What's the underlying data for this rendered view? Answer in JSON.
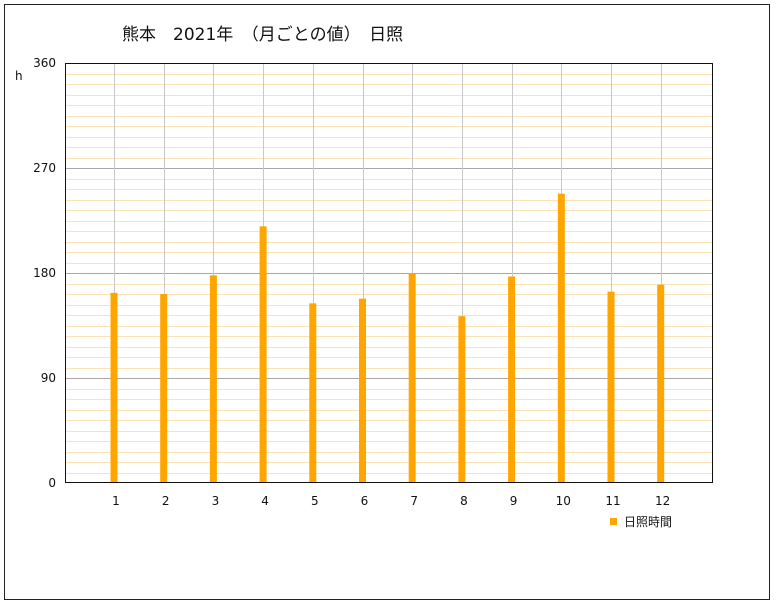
{
  "chart_data": {
    "type": "bar",
    "title": "熊本　2021年　（月ごとの値）　日照",
    "ylabel": "h",
    "xlabel": "",
    "categories": [
      "1",
      "2",
      "3",
      "4",
      "5",
      "6",
      "7",
      "8",
      "9",
      "10",
      "11",
      "12"
    ],
    "ylim": [
      0,
      360
    ],
    "yticks": [
      "0",
      "90",
      "180",
      "270",
      "360"
    ],
    "grid": true,
    "legend_position": "bottom-right",
    "series": [
      {
        "name": "日照時間",
        "color": "#FFA500",
        "values": [
          163,
          162,
          178,
          220,
          154,
          158,
          180,
          143,
          177,
          248,
          164,
          170
        ]
      }
    ]
  }
}
